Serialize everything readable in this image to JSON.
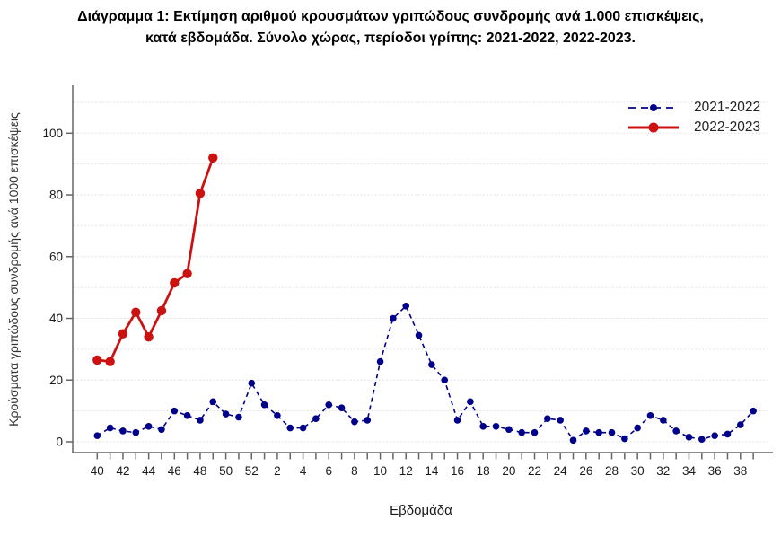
{
  "title": {
    "line1": "Διάγραμμα 1: Εκτίμηση αριθμού κρουσμάτων γριπώδους συνδρομής ανά 1.000 επισκέψεις,",
    "line2": "κατά εβδομάδα. Σύνολο χώρας, περίοδοι γρίπης:  2021-2022, 2022-2023."
  },
  "chart_data": {
    "type": "line",
    "x_label": "Εβδομάδα",
    "y_label": "Κρούσματα γριπώδους συνδρομής ανά 1000 επισκέψεις",
    "x_categories": [
      "40",
      "41",
      "42",
      "43",
      "44",
      "45",
      "46",
      "47",
      "48",
      "49",
      "50",
      "51",
      "52",
      "1",
      "2",
      "3",
      "4",
      "5",
      "6",
      "7",
      "8",
      "9",
      "10",
      "11",
      "12",
      "13",
      "14",
      "15",
      "16",
      "17",
      "18",
      "19",
      "20",
      "21",
      "22",
      "23",
      "24",
      "25",
      "26",
      "27",
      "28",
      "29",
      "30",
      "31",
      "32",
      "33",
      "34",
      "35",
      "36",
      "37",
      "38",
      "39"
    ],
    "x_tick_labels_shown": [
      "40",
      "42",
      "44",
      "46",
      "48",
      "50",
      "52",
      "2",
      "4",
      "6",
      "8",
      "10",
      "12",
      "14",
      "16",
      "18",
      "20",
      "22",
      "24",
      "26",
      "28",
      "30",
      "32",
      "34",
      "36",
      "38"
    ],
    "y_ticks": [
      0,
      20,
      40,
      60,
      80,
      100
    ],
    "ylim": [
      0,
      110
    ],
    "grid": "horizontal-dotted-every-10",
    "legend_position": "top-right",
    "series": [
      {
        "name": "2021-2022",
        "color": "#00008B",
        "style": "dashed",
        "values": [
          2,
          4.5,
          3.5,
          3,
          5,
          4,
          10,
          8.5,
          7,
          13,
          9,
          8,
          19,
          12,
          8.5,
          4.5,
          4.5,
          7.5,
          12,
          11,
          6.5,
          7,
          26,
          40,
          44,
          34.5,
          25,
          20,
          7,
          13,
          5,
          5,
          4,
          3,
          3,
          7.5,
          7,
          0.5,
          3.5,
          3,
          3,
          1,
          4.5,
          8.5,
          7,
          3.5,
          1.5,
          0.8,
          2,
          2.5,
          5.5,
          10
        ]
      },
      {
        "name": "2022-2023",
        "color": "#CC1111",
        "style": "solid",
        "values": [
          26.5,
          26,
          35,
          42,
          34,
          42.5,
          51.5,
          54.5,
          80.5,
          92
        ]
      }
    ],
    "colors": {
      "grid": "#d9d9d9",
      "axis": "#666666",
      "tick_text": "#1a1a1a"
    }
  }
}
